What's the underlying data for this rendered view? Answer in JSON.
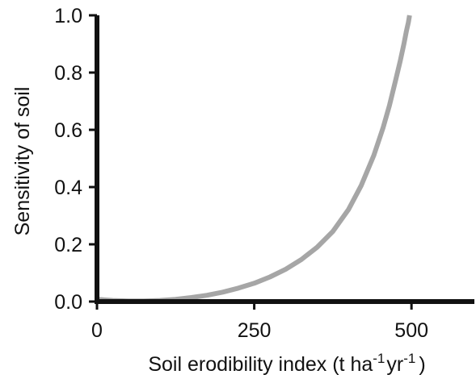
{
  "chart_data": {
    "type": "line",
    "xlabel": "Soil erodibility index (t ha",
    "xlabel_parts": [
      "Soil erodibility index (t ha",
      "-1",
      "yr",
      "-1",
      ")"
    ],
    "ylabel": "Sensitivity of soil",
    "xlim": [
      0,
      600
    ],
    "ylim": [
      0,
      1.0
    ],
    "x_ticks": [
      0,
      250,
      500
    ],
    "x_tick_labels": [
      "0",
      "250",
      "500"
    ],
    "y_ticks": [
      0.0,
      0.2,
      0.4,
      0.6,
      0.8,
      1.0
    ],
    "y_tick_labels": [
      "0.0",
      "0.2",
      "0.4",
      "0.6",
      "0.8",
      "1.0"
    ],
    "grid": false,
    "series": [
      {
        "color": "#a6a6a6",
        "x": [
          0,
          25,
          50,
          75,
          100,
          125,
          150,
          175,
          200,
          225,
          250,
          275,
          300,
          325,
          350,
          375,
          400,
          420,
          440,
          455,
          465,
          475,
          482,
          488,
          492,
          495,
          497
        ],
        "y": [
          0.008,
          0.004,
          0.002,
          0.002,
          0.004,
          0.008,
          0.014,
          0.022,
          0.033,
          0.047,
          0.064,
          0.086,
          0.113,
          0.147,
          0.19,
          0.245,
          0.322,
          0.405,
          0.51,
          0.608,
          0.685,
          0.775,
          0.84,
          0.9,
          0.945,
          0.975,
          1.0
        ]
      }
    ]
  }
}
